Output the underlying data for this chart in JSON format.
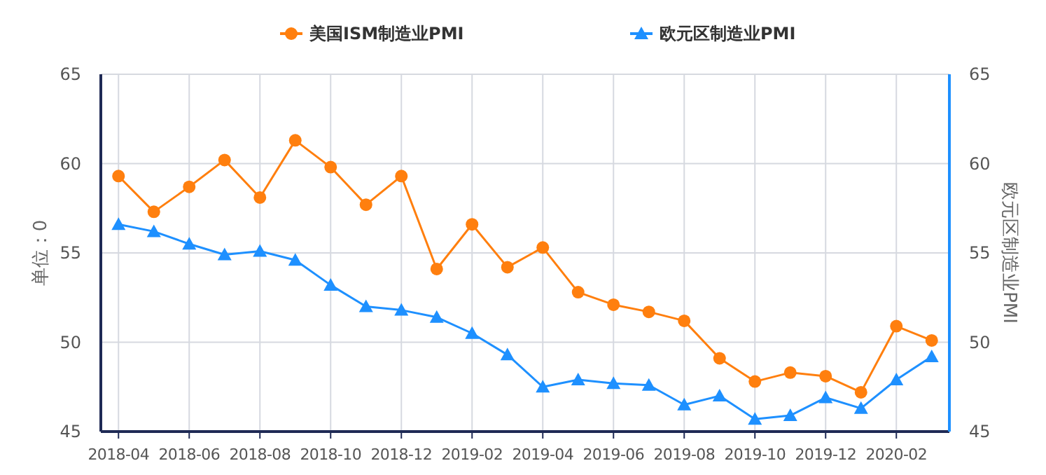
{
  "chart_data": {
    "type": "line",
    "categories": [
      "2018-04",
      null,
      "2018-06",
      null,
      "2018-08",
      null,
      "2018-10",
      null,
      "2018-12",
      null,
      "2019-02",
      null,
      "2019-04",
      null,
      "2019-06",
      null,
      "2019-08",
      null,
      "2019-10",
      null,
      "2019-12",
      null,
      "2020-02",
      null
    ],
    "series": [
      {
        "name": "美国ISM制造业PMI",
        "color": "#ff7f0e",
        "marker": "circle",
        "values": [
          59.3,
          57.3,
          58.7,
          60.2,
          58.1,
          61.3,
          59.8,
          57.7,
          59.3,
          54.1,
          56.6,
          54.2,
          55.3,
          52.8,
          52.1,
          51.7,
          51.2,
          49.1,
          47.8,
          48.3,
          48.1,
          47.2,
          50.9,
          50.1
        ]
      },
      {
        "name": "欧元区制造业PMI",
        "color": "#1e90ff",
        "marker": "triangle",
        "axis": "y2",
        "values": [
          56.6,
          56.2,
          55.5,
          54.9,
          55.1,
          54.6,
          53.2,
          52.0,
          51.8,
          51.4,
          50.5,
          49.3,
          47.5,
          47.9,
          47.7,
          47.6,
          46.5,
          47.0,
          45.7,
          45.9,
          46.9,
          46.3,
          47.9,
          49.2
        ]
      }
    ],
    "ylabel": "单位：0",
    "y2label": "欧元区制造业PMI",
    "ylim": [
      45,
      65
    ],
    "yticks": [
      45,
      50,
      55,
      60,
      65
    ],
    "y2lim": [
      45,
      65
    ],
    "y2ticks": [
      45,
      50,
      55,
      60,
      65
    ],
    "grid": true,
    "legend": "top"
  }
}
